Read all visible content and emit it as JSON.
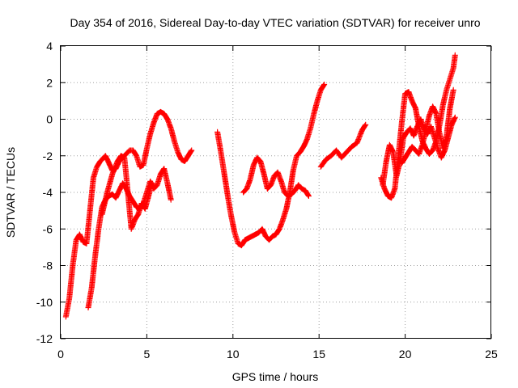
{
  "chart_data": {
    "type": "scatter",
    "title": "Day 354 of 2016, Sidereal Day-to-day VTEC variation (SDTVAR) for receiver unro",
    "xlabel": "GPS time / hours",
    "ylabel": "SDTVAR / TECUs",
    "xlim": [
      0,
      25
    ],
    "ylim": [
      -12,
      4
    ],
    "xticks": [
      0,
      5,
      10,
      15,
      20,
      25
    ],
    "yticks": [
      -12,
      -10,
      -8,
      -6,
      -4,
      -2,
      0,
      2,
      4
    ],
    "grid": true,
    "marker": "plus",
    "color": "#ff0000",
    "series": [
      {
        "x": [
          0.3,
          0.5,
          0.7,
          0.9,
          1.1,
          1.3,
          1.5,
          1.7,
          1.9,
          2.1,
          2.3,
          2.6,
          2.8,
          3.0,
          3.2,
          3.4,
          3.6,
          3.8,
          4.0,
          4.2,
          4.4,
          4.6,
          4.8,
          5.0,
          5.2,
          5.4,
          5.6,
          5.8,
          6.0,
          6.2,
          6.4,
          6.6,
          6.8,
          7.0,
          7.2,
          7.4,
          7.6
        ],
        "y": [
          -10.8,
          -9.8,
          -8.0,
          -6.6,
          -6.3,
          -6.7,
          -6.8,
          -5.0,
          -3.2,
          -2.6,
          -2.3,
          -2.0,
          -2.4,
          -2.8,
          -2.7,
          -2.3,
          -2.1,
          -1.9,
          -1.7,
          -1.7,
          -2.0,
          -2.6,
          -2.5,
          -1.6,
          -0.8,
          -0.2,
          0.3,
          0.4,
          0.3,
          0.0,
          -0.5,
          -1.2,
          -1.8,
          -2.2,
          -2.3,
          -2.0,
          -1.7
        ]
      },
      {
        "x": [
          1.6,
          1.8,
          2.0,
          2.2,
          2.4,
          2.6,
          2.8,
          3.0,
          3.2,
          3.4,
          3.6,
          3.8,
          4.0,
          4.2,
          4.4,
          4.6,
          4.8,
          5.0,
          5.2,
          5.4,
          5.6,
          5.8,
          6.0,
          6.2,
          6.4
        ],
        "y": [
          -10.3,
          -9.2,
          -7.5,
          -6.0,
          -4.8,
          -4.4,
          -4.2,
          -4.1,
          -4.3,
          -3.9,
          -3.5,
          -3.8,
          -4.2,
          -4.5,
          -4.8,
          -4.9,
          -4.6,
          -4.0,
          -3.4,
          -3.8,
          -3.6,
          -3.0,
          -2.7,
          -3.5,
          -4.4
        ]
      },
      {
        "x": [
          2.4,
          2.7,
          3.0,
          3.3,
          3.5,
          3.7,
          3.9,
          4.1,
          4.3,
          4.5,
          4.7,
          4.9,
          5.1,
          5.3
        ],
        "y": [
          -5.2,
          -4.0,
          -3.0,
          -2.3,
          -2.0,
          -2.1,
          -4.0,
          -6.0,
          -5.5,
          -5.2,
          -4.6,
          -4.9,
          -4.2,
          -3.5
        ]
      },
      {
        "x": [
          9.1,
          9.3,
          9.5,
          9.7,
          9.9,
          10.1,
          10.3,
          10.5,
          10.7,
          10.9,
          11.1,
          11.3,
          11.5,
          11.7,
          11.9,
          12.1,
          12.3,
          12.5,
          12.7,
          12.9,
          13.1,
          13.3,
          13.5,
          13.7,
          13.9,
          14.1,
          14.3,
          14.5,
          14.7,
          14.9,
          15.1,
          15.3
        ],
        "y": [
          -0.7,
          -1.8,
          -3.0,
          -4.2,
          -5.3,
          -6.2,
          -6.8,
          -6.9,
          -6.6,
          -6.5,
          -6.4,
          -6.3,
          -6.2,
          -6.0,
          -6.4,
          -6.6,
          -6.4,
          -6.3,
          -6.0,
          -5.5,
          -4.9,
          -4.0,
          -2.8,
          -2.0,
          -1.8,
          -1.5,
          -1.1,
          -0.5,
          0.3,
          1.0,
          1.6,
          1.9
        ]
      },
      {
        "x": [
          10.6,
          10.8,
          11.0,
          11.2,
          11.4,
          11.6,
          11.8,
          12.0,
          12.2,
          12.4,
          12.6,
          12.8,
          13.0,
          13.2,
          13.4,
          13.6,
          13.8,
          14.0,
          14.2,
          14.4
        ],
        "y": [
          -4.0,
          -3.8,
          -3.3,
          -2.5,
          -2.1,
          -2.3,
          -3.0,
          -3.8,
          -3.6,
          -3.1,
          -2.9,
          -3.4,
          -4.0,
          -4.2,
          -4.1,
          -3.9,
          -3.6,
          -3.8,
          -3.9,
          -4.2
        ]
      },
      {
        "x": [
          15.1,
          15.4,
          15.7,
          16.0,
          16.3,
          16.6,
          16.9,
          17.2,
          17.5,
          17.7
        ],
        "y": [
          -2.6,
          -2.2,
          -2.0,
          -1.7,
          -2.1,
          -1.8,
          -1.5,
          -1.3,
          -0.6,
          -0.3
        ]
      },
      {
        "x": [
          18.6,
          18.8,
          19.0,
          19.2,
          19.4,
          19.6,
          19.8,
          20.0,
          20.2,
          20.4,
          20.6,
          20.8,
          21.0,
          21.2,
          21.4,
          21.6,
          21.8,
          22.0,
          22.2,
          22.4,
          22.6,
          22.8,
          22.9
        ],
        "y": [
          -3.2,
          -3.8,
          -4.2,
          -4.3,
          -3.8,
          -2.0,
          -0.2,
          1.4,
          1.5,
          1.0,
          0.6,
          -0.4,
          -1.2,
          -1.6,
          -1.9,
          -1.7,
          -1.2,
          -0.3,
          0.8,
          1.6,
          2.2,
          2.8,
          3.5
        ]
      },
      {
        "x": [
          18.7,
          18.9,
          19.1,
          19.3,
          19.5,
          19.7,
          19.9,
          20.1,
          20.3,
          20.5,
          20.7,
          20.9,
          21.1,
          21.3,
          21.5,
          21.7,
          21.9,
          22.1,
          22.3,
          22.5,
          22.7,
          22.9
        ],
        "y": [
          -3.6,
          -2.3,
          -1.4,
          -1.8,
          -3.1,
          -2.3,
          -1.0,
          -0.7,
          -0.5,
          -0.9,
          -0.4,
          0.0,
          -0.5,
          -0.8,
          -0.4,
          -1.0,
          -1.6,
          -2.1,
          -1.7,
          -1.0,
          -0.3,
          0.1
        ]
      },
      {
        "x": [
          19.8,
          20.0,
          20.2,
          20.4,
          20.6,
          20.8,
          21.0,
          21.2,
          21.4,
          21.6,
          21.8,
          22.0,
          22.2,
          22.4,
          22.6,
          22.8
        ],
        "y": [
          -2.4,
          -2.1,
          -1.8,
          -1.5,
          -1.7,
          -1.9,
          -1.4,
          -0.6,
          0.2,
          0.7,
          0.3,
          -0.8,
          -1.6,
          -0.9,
          0.6,
          1.6
        ]
      }
    ]
  }
}
